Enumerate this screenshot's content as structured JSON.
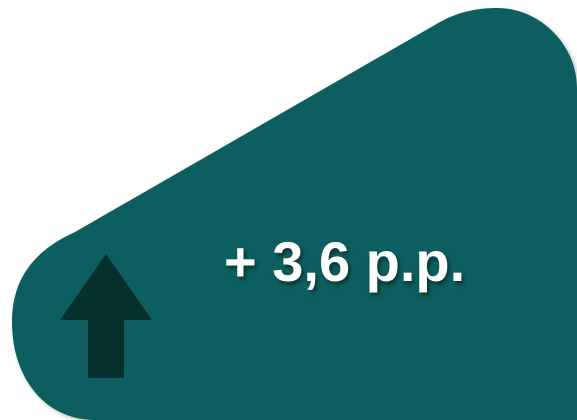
{
  "indicator": {
    "value_text": "+ 3,6 p.p.",
    "direction_icon": "arrow-up-icon"
  },
  "colors": {
    "panel": "#115e5f",
    "arrow": "#06302e",
    "text": "#ffffff",
    "background": "#ffffff"
  }
}
